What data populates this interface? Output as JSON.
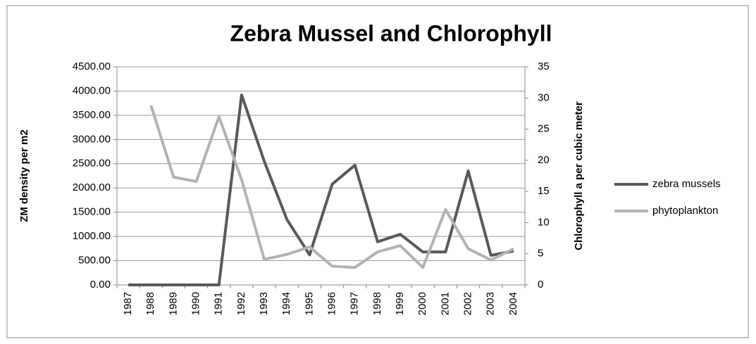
{
  "chart_data": {
    "type": "line",
    "title": "Zebra Mussel and Chlorophyll",
    "ylabel": "ZM density per m2",
    "y2label": "Chlorophyll a per cubic meter",
    "categories": [
      "1987",
      "1988",
      "1989",
      "1990",
      "1991",
      "1992",
      "1993",
      "1994",
      "1995",
      "1996",
      "1997",
      "1998",
      "1999",
      "2000",
      "2001",
      "2002",
      "2003",
      "2004"
    ],
    "series": [
      {
        "name": "zebra mussels",
        "color": "#595959",
        "values": [
          0,
          0,
          0,
          0,
          0,
          3920,
          2550,
          1350,
          620,
          2080,
          2470,
          890,
          1045,
          680,
          680,
          2350,
          610,
          700
        ]
      },
      {
        "name": "phytoplankton",
        "color": "#b3b3b3",
        "axis": "y2",
        "values": [
          null,
          28.8,
          17.3,
          16.6,
          27,
          16.9,
          4.1,
          4.9,
          6.1,
          3.0,
          2.8,
          5.3,
          6.3,
          2.8,
          12.1,
          5.8,
          4.0,
          5.8
        ]
      }
    ],
    "ylim": [
      0,
      4500
    ],
    "yticks": [
      {
        "value": 0,
        "label": "0.00"
      },
      {
        "value": 500,
        "label": "500.00"
      },
      {
        "value": 1000,
        "label": "1000.00"
      },
      {
        "value": 1500,
        "label": "1500.00"
      },
      {
        "value": 2000,
        "label": "2000.00"
      },
      {
        "value": 2500,
        "label": "2500.00"
      },
      {
        "value": 3000,
        "label": "3000.00"
      },
      {
        "value": 3500,
        "label": "3500.00"
      },
      {
        "value": 4000,
        "label": "4000.00"
      },
      {
        "value": 4500,
        "label": "4500.00"
      }
    ],
    "y2lim": [
      0,
      35
    ],
    "y2ticks": [
      0,
      5,
      10,
      15,
      20,
      25,
      30,
      35
    ],
    "grid": true,
    "legend": "right"
  }
}
